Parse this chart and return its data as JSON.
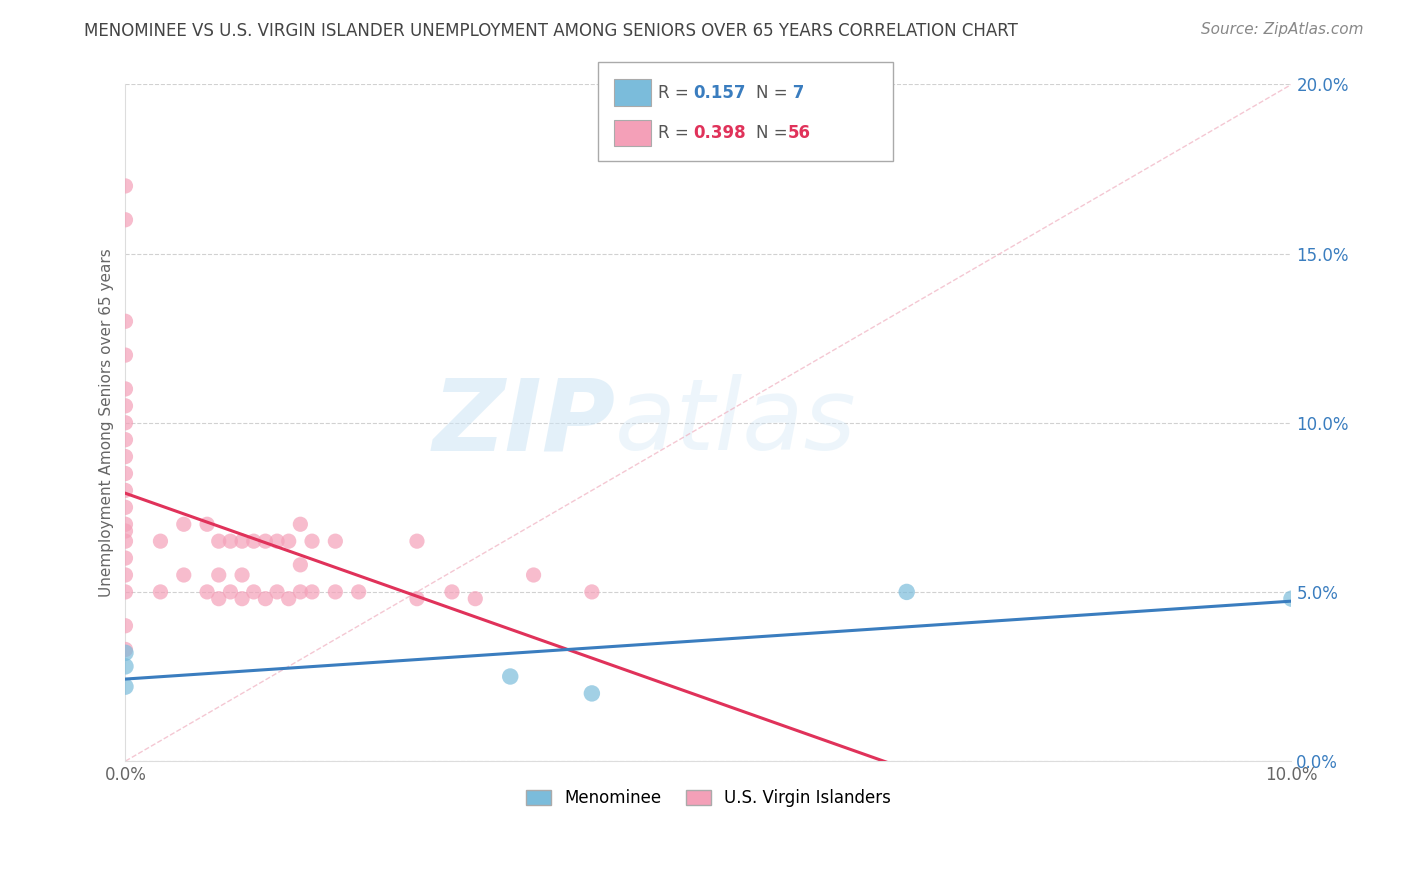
{
  "title": "MENOMINEE VS U.S. VIRGIN ISLANDER UNEMPLOYMENT AMONG SENIORS OVER 65 YEARS CORRELATION CHART",
  "source": "Source: ZipAtlas.com",
  "ylabel": "Unemployment Among Seniors over 65 years",
  "xlim": [
    0.0,
    0.1
  ],
  "ylim": [
    0.0,
    0.2
  ],
  "xticks": [
    0.0,
    0.02,
    0.04,
    0.06,
    0.08,
    0.1
  ],
  "yticks": [
    0.0,
    0.05,
    0.1,
    0.15,
    0.2
  ],
  "xtick_labels": [
    "0.0%",
    "",
    "",
    "",
    "",
    "10.0%"
  ],
  "ytick_labels": [
    "0.0%",
    "5.0%",
    "10.0%",
    "15.0%",
    "20.0%"
  ],
  "menominee_color": "#7bbcdb",
  "vi_color": "#f4a0b8",
  "menominee_line_color": "#3a7dbf",
  "vi_line_color": "#e0325a",
  "watermark_zip": "ZIP",
  "watermark_atlas": "atlas",
  "r_menominee": "0.157",
  "n_menominee": "7",
  "r_vi": "0.398",
  "n_vi": "56",
  "background_color": "#ffffff",
  "grid_color": "#cccccc",
  "title_color": "#444444",
  "source_color": "#888888",
  "ytick_color": "#3a7dbf",
  "menominee_x": [
    0.0,
    0.0,
    0.0,
    0.033,
    0.067,
    0.1,
    0.04
  ],
  "menominee_y": [
    0.032,
    0.028,
    0.022,
    0.025,
    0.05,
    0.048,
    0.02
  ],
  "vi_x": [
    0.0,
    0.0,
    0.0,
    0.0,
    0.0,
    0.0,
    0.0,
    0.0,
    0.0,
    0.0,
    0.0,
    0.0,
    0.0,
    0.0,
    0.0,
    0.0,
    0.0,
    0.0,
    0.0,
    0.0,
    0.003,
    0.003,
    0.005,
    0.005,
    0.007,
    0.007,
    0.008,
    0.008,
    0.008,
    0.009,
    0.009,
    0.01,
    0.01,
    0.01,
    0.011,
    0.011,
    0.012,
    0.012,
    0.013,
    0.013,
    0.014,
    0.014,
    0.015,
    0.015,
    0.015,
    0.016,
    0.016,
    0.018,
    0.018,
    0.02,
    0.025,
    0.025,
    0.028,
    0.03,
    0.035,
    0.04
  ],
  "vi_y": [
    0.033,
    0.04,
    0.05,
    0.055,
    0.06,
    0.065,
    0.068,
    0.07,
    0.075,
    0.08,
    0.085,
    0.09,
    0.095,
    0.1,
    0.105,
    0.11,
    0.12,
    0.13,
    0.16,
    0.17,
    0.05,
    0.065,
    0.055,
    0.07,
    0.05,
    0.07,
    0.048,
    0.055,
    0.065,
    0.05,
    0.065,
    0.048,
    0.055,
    0.065,
    0.05,
    0.065,
    0.048,
    0.065,
    0.05,
    0.065,
    0.048,
    0.065,
    0.05,
    0.058,
    0.07,
    0.05,
    0.065,
    0.05,
    0.065,
    0.05,
    0.048,
    0.065,
    0.05,
    0.048,
    0.055,
    0.05
  ]
}
